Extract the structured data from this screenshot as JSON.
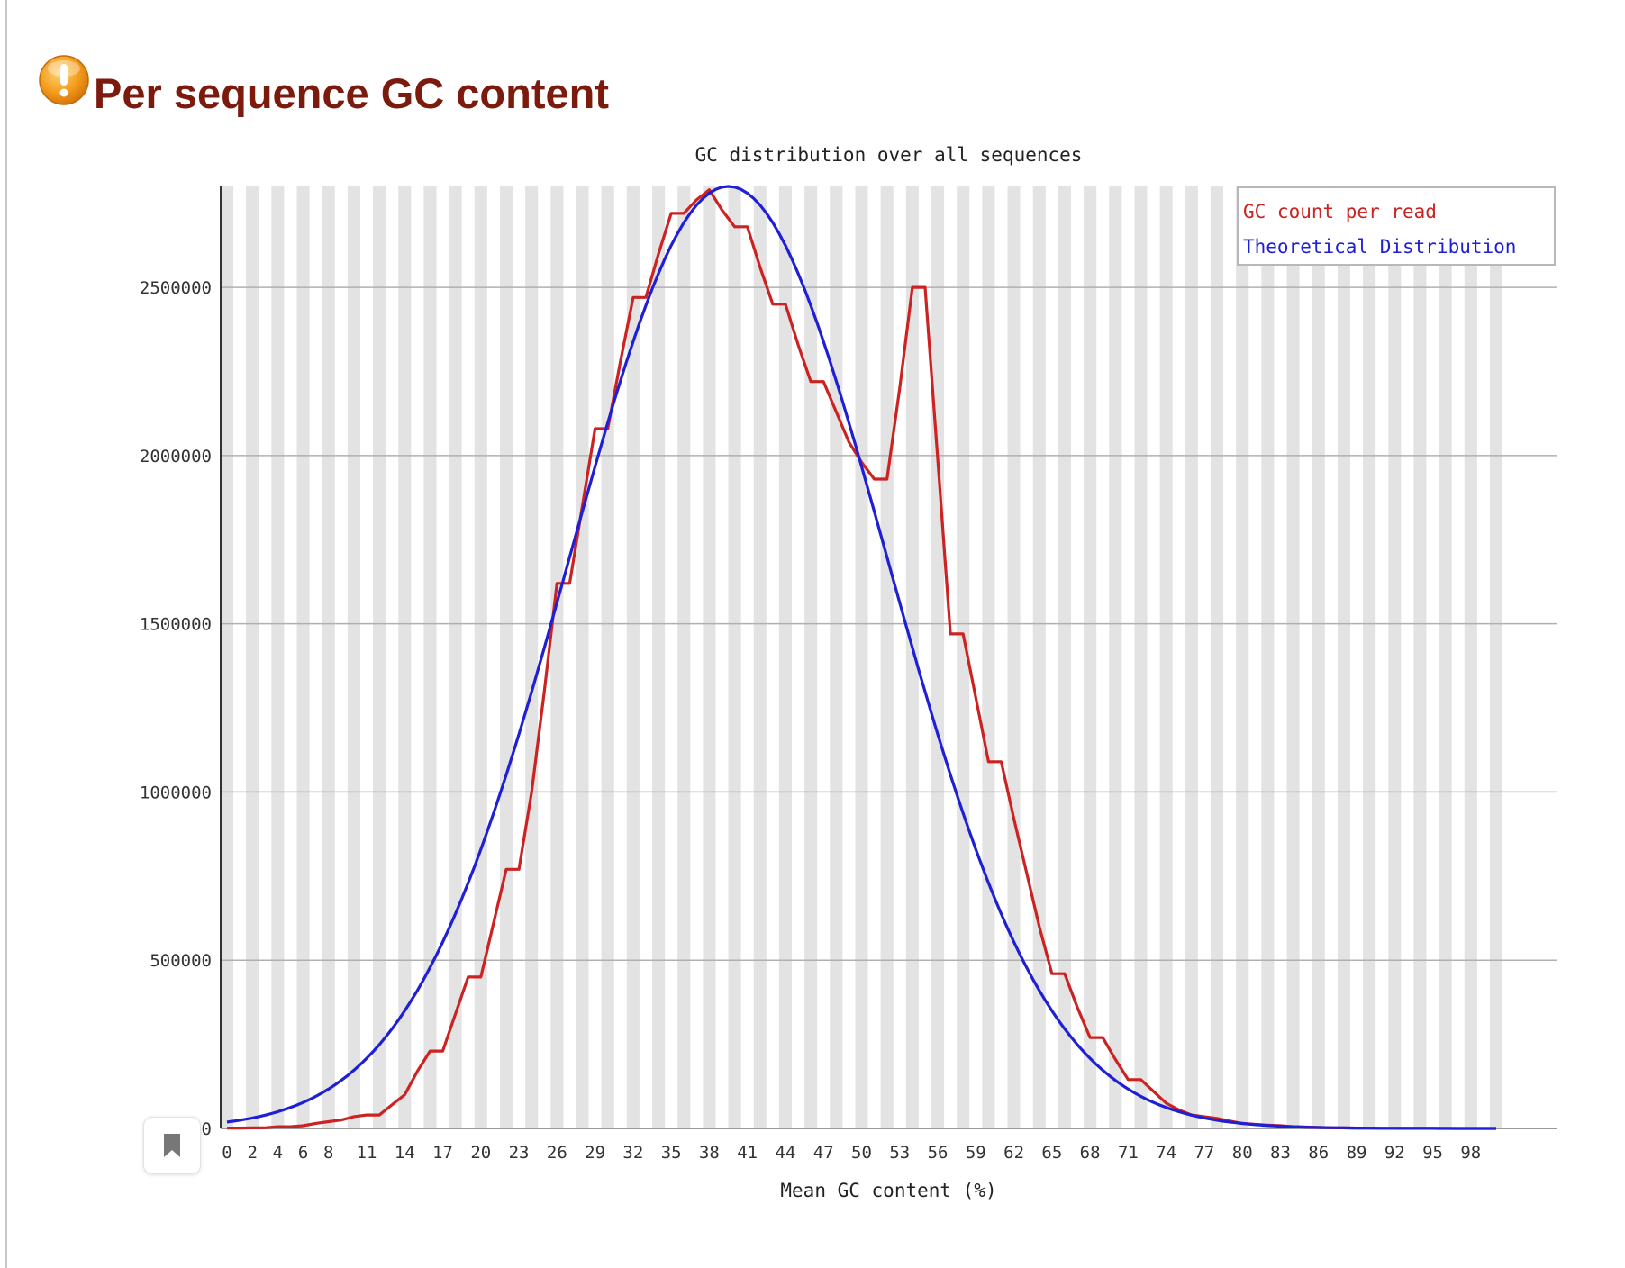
{
  "page": {
    "title": "Per sequence GC content",
    "status_icon": "warning-icon",
    "bookmark_icon": "bookmark-icon"
  },
  "chart_data": {
    "type": "line",
    "title": "GC distribution over all sequences",
    "xlabel": "Mean GC content (%)",
    "ylabel": "",
    "x_ticks": [
      0,
      2,
      4,
      6,
      8,
      11,
      14,
      17,
      20,
      23,
      26,
      29,
      32,
      35,
      38,
      41,
      44,
      47,
      50,
      53,
      56,
      59,
      62,
      65,
      68,
      71,
      74,
      77,
      80,
      83,
      86,
      89,
      92,
      95,
      98
    ],
    "y_ticks": [
      0,
      500000,
      1000000,
      1500000,
      2000000,
      2500000
    ],
    "xlim": [
      0,
      100
    ],
    "ylim": [
      0,
      2800000
    ],
    "grid": true,
    "legend": "top-right",
    "series": [
      {
        "name": "GC count per read",
        "color": "#cc2222",
        "x": [
          0,
          1,
          2,
          3,
          4,
          5,
          6,
          7,
          8,
          9,
          10,
          11,
          12,
          13,
          14,
          15,
          16,
          17,
          18,
          19,
          20,
          21,
          22,
          23,
          24,
          25,
          26,
          27,
          28,
          29,
          30,
          31,
          32,
          33,
          34,
          35,
          36,
          37,
          38,
          39,
          40,
          41,
          42,
          43,
          44,
          45,
          46,
          47,
          48,
          49,
          50,
          51,
          52,
          53,
          54,
          55,
          56,
          57,
          58,
          59,
          60,
          61,
          62,
          63,
          64,
          65,
          66,
          67,
          68,
          69,
          70,
          71,
          72,
          73,
          74,
          75,
          76,
          77,
          78,
          79,
          80,
          81,
          82,
          83,
          84,
          85,
          86,
          87,
          88,
          89,
          90,
          91,
          92,
          93,
          94,
          95,
          96,
          97,
          98,
          99,
          100
        ],
        "values": [
          1000,
          1000,
          1500,
          2000,
          5000,
          5000,
          8000,
          15000,
          20000,
          25000,
          35000,
          40000,
          40000,
          70000,
          100000,
          170000,
          230000,
          230000,
          340000,
          450000,
          450000,
          610000,
          770000,
          770000,
          1000000,
          1300000,
          1620000,
          1620000,
          1850000,
          2080000,
          2080000,
          2280000,
          2470000,
          2470000,
          2600000,
          2720000,
          2720000,
          2760000,
          2790000,
          2730000,
          2680000,
          2680000,
          2560000,
          2450000,
          2450000,
          2330000,
          2220000,
          2220000,
          2130000,
          2040000,
          1980000,
          1930000,
          1930000,
          2200000,
          2500000,
          2500000,
          1990000,
          1470000,
          1470000,
          1280000,
          1090000,
          1090000,
          920000,
          760000,
          600000,
          460000,
          460000,
          360000,
          270000,
          270000,
          205000,
          145000,
          145000,
          110000,
          75000,
          55000,
          40000,
          35000,
          30000,
          22000,
          15000,
          12000,
          10000,
          8000,
          5000,
          4000,
          3000,
          2000,
          1500,
          1000,
          800,
          600,
          500,
          400,
          300,
          200,
          150,
          100,
          80,
          50,
          30
        ]
      },
      {
        "name": "Theoretical Distribution",
        "color": "#1f1fd6",
        "mean": 39.5,
        "sd": 12.5,
        "peak": 2800000
      }
    ]
  }
}
